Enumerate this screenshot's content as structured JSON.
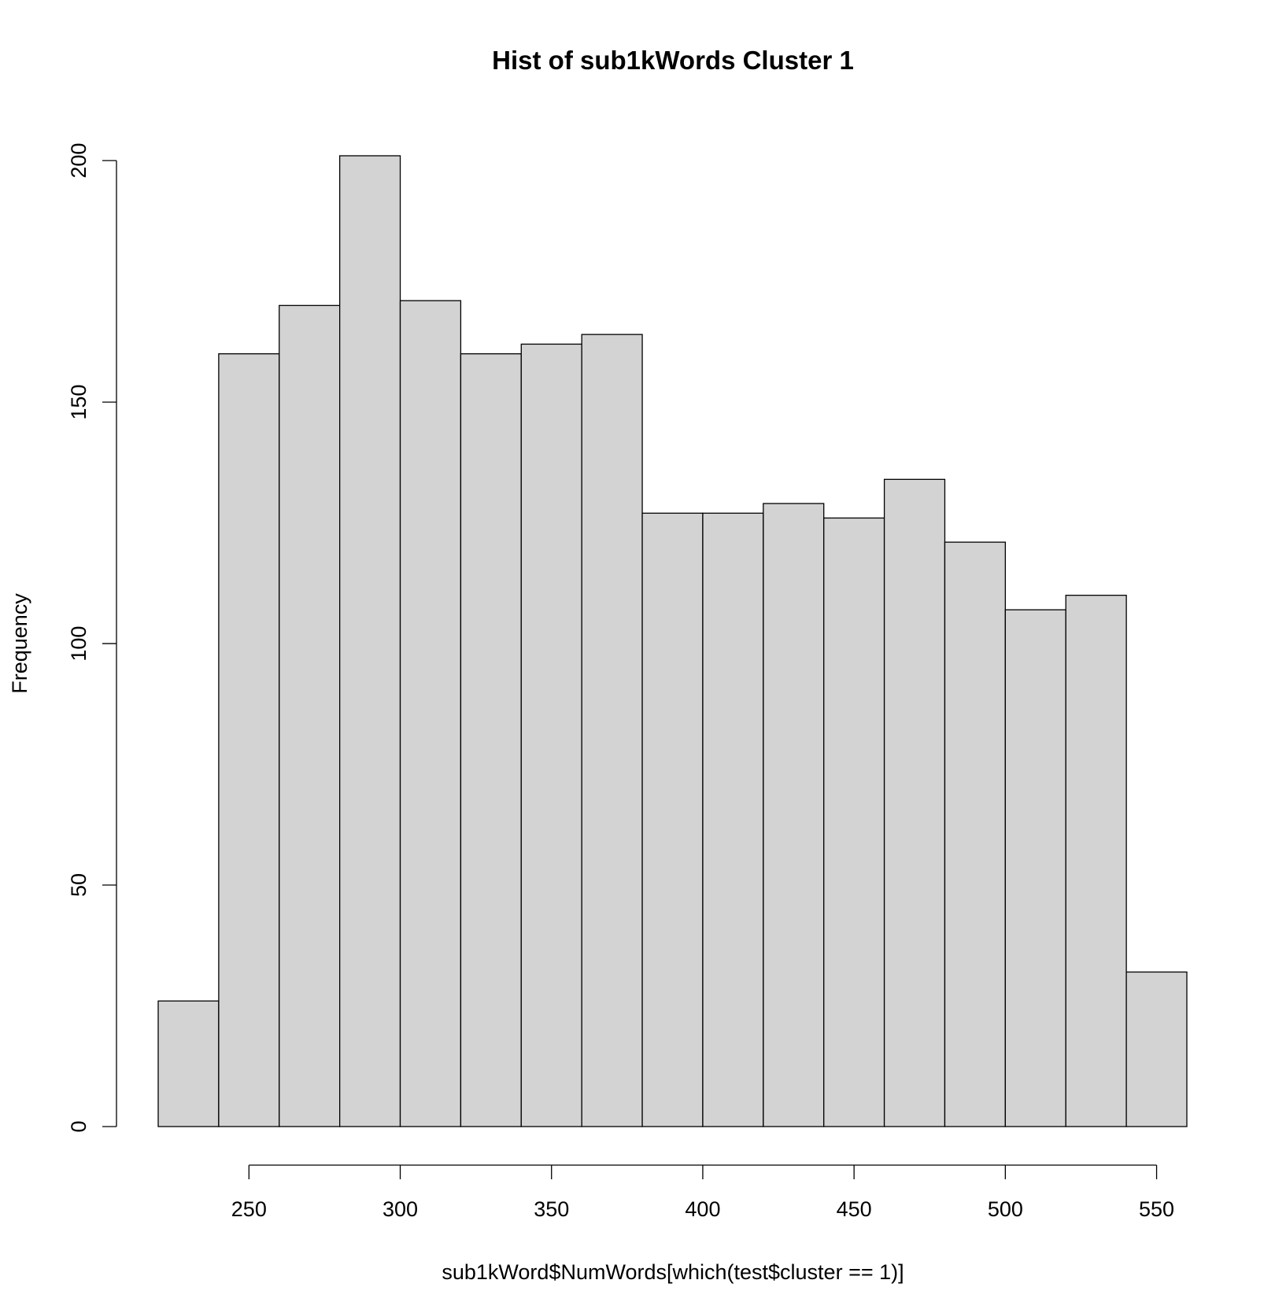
{
  "chart_data": {
    "type": "bar",
    "subtype": "histogram",
    "title": "Hist of sub1kWords Cluster 1",
    "xlabel": "sub1kWord$NumWords[which(test$cluster == 1)]",
    "ylabel": "Frequency",
    "bin_edges": [
      220,
      240,
      260,
      280,
      300,
      320,
      340,
      360,
      380,
      400,
      420,
      440,
      460,
      480,
      500,
      520,
      540,
      560
    ],
    "values": [
      26,
      160,
      170,
      201,
      171,
      160,
      162,
      164,
      127,
      127,
      129,
      126,
      134,
      121,
      107,
      110,
      32
    ],
    "xlim": [
      220,
      560
    ],
    "ylim": [
      0,
      201
    ],
    "x_ticks": [
      250,
      300,
      350,
      400,
      450,
      500,
      550
    ],
    "x_tick_labels": [
      "250",
      "300",
      "350",
      "400",
      "450",
      "500",
      "550"
    ],
    "y_ticks": [
      0,
      50,
      100,
      150,
      200
    ],
    "y_tick_labels": [
      "0",
      "50",
      "100",
      "150",
      "200"
    ],
    "grid": false,
    "legend": "none",
    "colors": {
      "bar_fill": "#d3d3d3",
      "bar_stroke": "#000000",
      "axis": "#000000",
      "background": "#ffffff"
    }
  }
}
